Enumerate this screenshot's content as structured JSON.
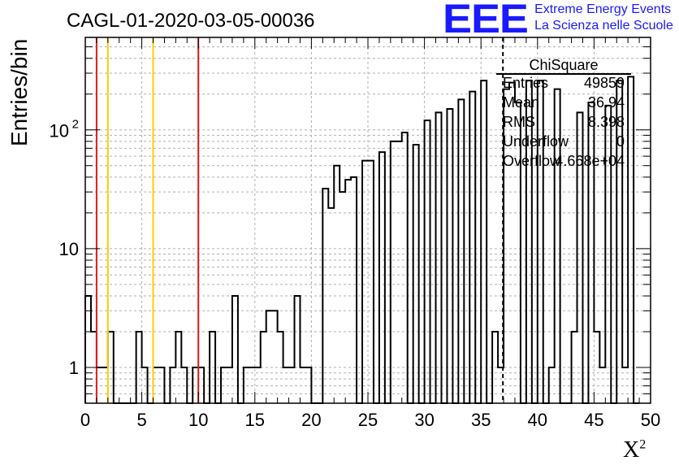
{
  "title": "CAGL-01-2020-03-05-00036",
  "logo": {
    "mark": "EEE",
    "line1": "Extreme Energy Events",
    "line2": "La Scienza nelle Scuole",
    "color": "#1a1aff"
  },
  "stats": {
    "title": "ChiSquare",
    "rows": [
      {
        "key": "Entries",
        "value": "49859"
      },
      {
        "key": "Mean",
        "value": "36.94"
      },
      {
        "key": "RMS",
        "value": "8.398"
      },
      {
        "key": "Underflow",
        "value": "0"
      },
      {
        "key": "Overflow",
        "value": "4.668e+04"
      }
    ]
  },
  "chart_data": {
    "type": "bar",
    "style": "step-histogram",
    "ylabel": "Entries/bin",
    "xlabel": "X",
    "xlabel_sup": "2",
    "x_range": [
      0,
      50
    ],
    "y_range": [
      0.5,
      600
    ],
    "y_scale": "log",
    "grid": true,
    "bin_width": 0.5,
    "x_ticks": [
      0,
      5,
      10,
      15,
      20,
      25,
      30,
      35,
      40,
      45,
      50
    ],
    "x_tick_labels": [
      "0",
      "5",
      "10",
      "15",
      "20",
      "25",
      "30",
      "35",
      "40",
      "45",
      "50"
    ],
    "y_ticks": [
      1,
      10,
      100
    ],
    "y_tick_labels": [
      "1",
      "10",
      "10",
      "2"
    ],
    "bins": [
      {
        "x0": 0.0,
        "v": 4
      },
      {
        "x0": 0.5,
        "v": 2
      },
      {
        "x0": 1.0,
        "v": 1
      },
      {
        "x0": 1.5,
        "v": 1
      },
      {
        "x0": 2.0,
        "v": 2
      },
      {
        "x0": 2.5,
        "v": 0
      },
      {
        "x0": 3.0,
        "v": 0
      },
      {
        "x0": 3.5,
        "v": 0
      },
      {
        "x0": 4.0,
        "v": 0
      },
      {
        "x0": 4.5,
        "v": 2
      },
      {
        "x0": 5.0,
        "v": 1
      },
      {
        "x0": 5.5,
        "v": 0
      },
      {
        "x0": 6.0,
        "v": 1
      },
      {
        "x0": 6.5,
        "v": 1
      },
      {
        "x0": 7.0,
        "v": 0
      },
      {
        "x0": 7.5,
        "v": 1
      },
      {
        "x0": 8.0,
        "v": 2
      },
      {
        "x0": 8.5,
        "v": 1
      },
      {
        "x0": 9.0,
        "v": 0
      },
      {
        "x0": 9.5,
        "v": 1
      },
      {
        "x0": 10.0,
        "v": 1
      },
      {
        "x0": 10.5,
        "v": 0
      },
      {
        "x0": 11.0,
        "v": 2
      },
      {
        "x0": 11.5,
        "v": 0
      },
      {
        "x0": 12.0,
        "v": 1
      },
      {
        "x0": 12.5,
        "v": 1
      },
      {
        "x0": 13.0,
        "v": 4
      },
      {
        "x0": 13.5,
        "v": 0
      },
      {
        "x0": 14.0,
        "v": 1
      },
      {
        "x0": 14.5,
        "v": 1
      },
      {
        "x0": 15.0,
        "v": 1
      },
      {
        "x0": 15.5,
        "v": 2
      },
      {
        "x0": 16.0,
        "v": 3
      },
      {
        "x0": 16.5,
        "v": 3
      },
      {
        "x0": 17.0,
        "v": 2
      },
      {
        "x0": 17.5,
        "v": 1
      },
      {
        "x0": 18.0,
        "v": 1
      },
      {
        "x0": 18.5,
        "v": 4
      },
      {
        "x0": 19.0,
        "v": 1
      },
      {
        "x0": 19.5,
        "v": 1
      },
      {
        "x0": 20.0,
        "v": 0
      },
      {
        "x0": 20.5,
        "v": 0
      },
      {
        "x0": 21.0,
        "v": 32
      },
      {
        "x0": 21.5,
        "v": 22
      },
      {
        "x0": 22.0,
        "v": 50
      },
      {
        "x0": 22.5,
        "v": 30
      },
      {
        "x0": 23.0,
        "v": 38
      },
      {
        "x0": 23.5,
        "v": 40
      },
      {
        "x0": 24.0,
        "v": 0
      },
      {
        "x0": 24.5,
        "v": 55
      },
      {
        "x0": 25.0,
        "v": 55
      },
      {
        "x0": 25.5,
        "v": 0
      },
      {
        "x0": 26.0,
        "v": 65
      },
      {
        "x0": 26.5,
        "v": 0
      },
      {
        "x0": 27.0,
        "v": 80
      },
      {
        "x0": 27.5,
        "v": 80
      },
      {
        "x0": 28.0,
        "v": 95
      },
      {
        "x0": 28.5,
        "v": 0
      },
      {
        "x0": 29.0,
        "v": 75
      },
      {
        "x0": 29.5,
        "v": 0
      },
      {
        "x0": 30.0,
        "v": 120
      },
      {
        "x0": 30.5,
        "v": 0
      },
      {
        "x0": 31.0,
        "v": 140
      },
      {
        "x0": 31.5,
        "v": 0
      },
      {
        "x0": 32.0,
        "v": 150
      },
      {
        "x0": 32.5,
        "v": 0
      },
      {
        "x0": 33.0,
        "v": 180
      },
      {
        "x0": 33.5,
        "v": 0
      },
      {
        "x0": 34.0,
        "v": 210
      },
      {
        "x0": 34.5,
        "v": 0
      },
      {
        "x0": 35.0,
        "v": 260
      },
      {
        "x0": 35.5,
        "v": 0
      },
      {
        "x0": 36.0,
        "v": 2
      },
      {
        "x0": 36.5,
        "v": 1
      },
      {
        "x0": 37.0,
        "v": 220
      },
      {
        "x0": 37.5,
        "v": 250
      },
      {
        "x0": 38.0,
        "v": 170
      },
      {
        "x0": 38.5,
        "v": 0
      },
      {
        "x0": 39.0,
        "v": 260
      },
      {
        "x0": 39.5,
        "v": 0
      },
      {
        "x0": 40.0,
        "v": 260
      },
      {
        "x0": 40.5,
        "v": 0
      },
      {
        "x0": 41.0,
        "v": 1
      },
      {
        "x0": 41.5,
        "v": 220
      },
      {
        "x0": 42.0,
        "v": 0
      },
      {
        "x0": 42.5,
        "v": 0
      },
      {
        "x0": 43.0,
        "v": 2
      },
      {
        "x0": 43.5,
        "v": 140
      },
      {
        "x0": 44.0,
        "v": 0
      },
      {
        "x0": 44.5,
        "v": 170
      },
      {
        "x0": 45.0,
        "v": 2
      },
      {
        "x0": 45.5,
        "v": 1
      },
      {
        "x0": 46.0,
        "v": 160
      },
      {
        "x0": 46.5,
        "v": 0
      },
      {
        "x0": 47.0,
        "v": 260
      },
      {
        "x0": 47.5,
        "v": 1
      },
      {
        "x0": 48.0,
        "v": 280
      },
      {
        "x0": 48.5,
        "v": 0
      }
    ],
    "markers": [
      {
        "x": 1,
        "color": "#e31a1c",
        "style": "solid"
      },
      {
        "x": 2,
        "color": "#ffcc00",
        "style": "solid"
      },
      {
        "x": 6,
        "color": "#ffcc00",
        "style": "solid"
      },
      {
        "x": 10,
        "color": "#e31a1c",
        "style": "solid"
      },
      {
        "x": 36.94,
        "color": "#000000",
        "style": "dashed"
      }
    ]
  }
}
